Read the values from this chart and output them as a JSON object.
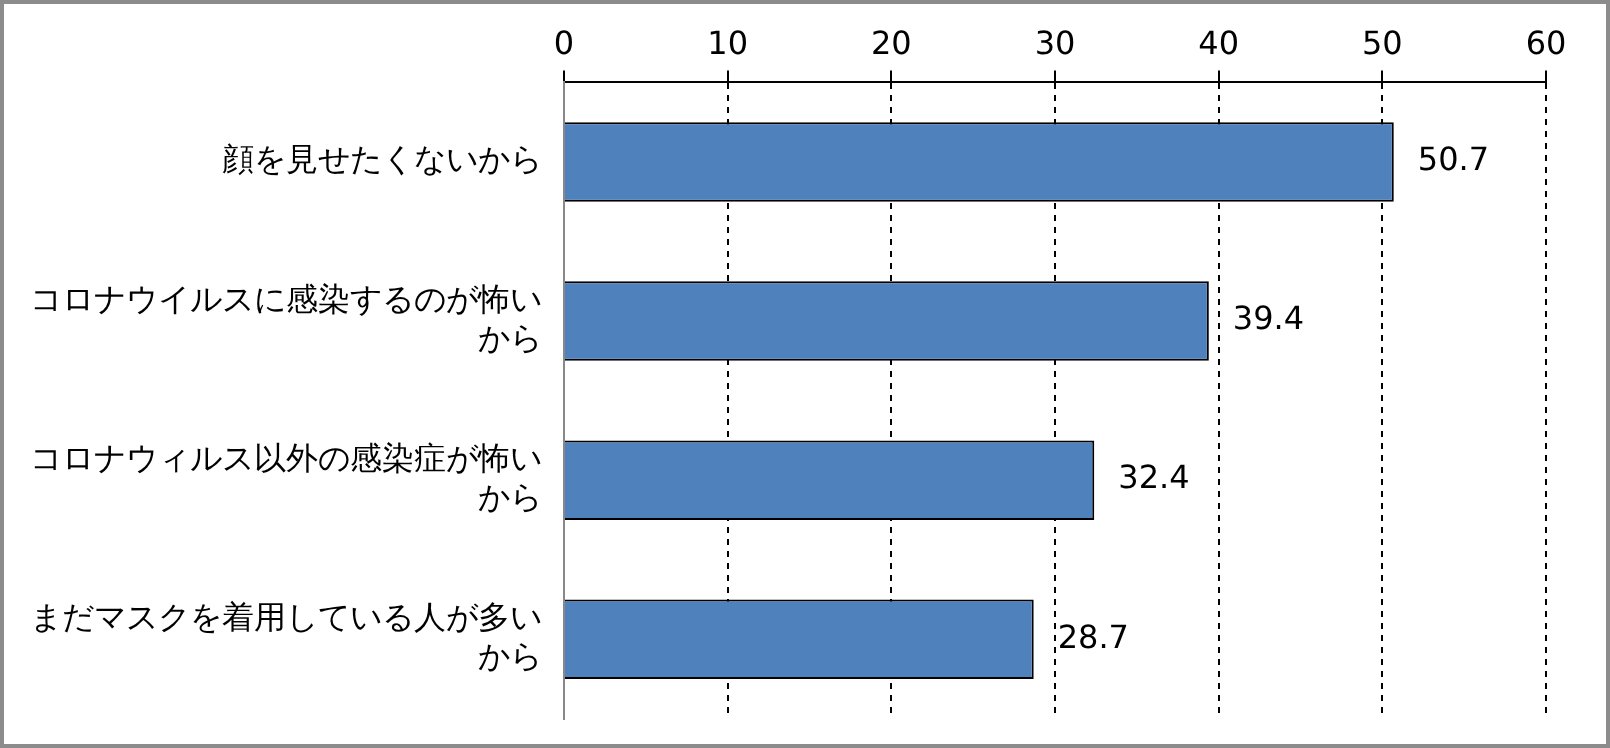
{
  "chart_data": {
    "type": "bar",
    "orientation": "horizontal",
    "categories": [
      "顔を見せたくないから",
      "コロナウイルスに感染するのが怖いから",
      "コロナウィルス以外の感染症が怖いから",
      "まだマスクを着用している人が多いから"
    ],
    "values": [
      50.7,
      39.4,
      32.4,
      28.7
    ],
    "color": "#4f81bd",
    "xlim": [
      0,
      60
    ],
    "xticks": [
      0,
      10,
      20,
      30,
      40,
      50,
      60
    ],
    "grid": "x",
    "data_labels": true
  }
}
